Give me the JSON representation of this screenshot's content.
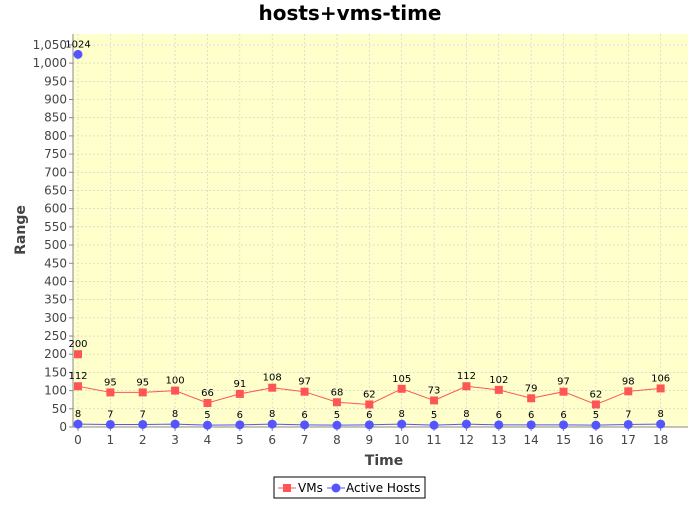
{
  "chart_data": {
    "type": "line",
    "title": "hosts+vms-time",
    "xlabel": "Time",
    "ylabel": "Range",
    "xlim": [
      0,
      19
    ],
    "ylim": [
      0,
      1080
    ],
    "x_ticks": [
      0,
      1,
      2,
      3,
      4,
      5,
      6,
      7,
      8,
      9,
      10,
      11,
      12,
      13,
      14,
      15,
      16,
      17,
      18
    ],
    "y_ticks": [
      0,
      50,
      100,
      150,
      200,
      250,
      300,
      350,
      400,
      450,
      500,
      550,
      600,
      650,
      700,
      750,
      800,
      850,
      900,
      950,
      1000,
      1050
    ],
    "y_tick_labels": [
      "0",
      "50",
      "100",
      "150",
      "200",
      "250",
      "300",
      "350",
      "400",
      "450",
      "500",
      "550",
      "600",
      "650",
      "700",
      "750",
      "800",
      "850",
      "900",
      "950",
      "1,000",
      "1,050"
    ],
    "grid": true,
    "legend_position": "bottom",
    "series": [
      {
        "name": "VMs",
        "color": "#ff5555",
        "marker": "square",
        "x": [
          0,
          1,
          2,
          3,
          4,
          5,
          6,
          7,
          8,
          9,
          10,
          11,
          12,
          13,
          14,
          15,
          16,
          17,
          18
        ],
        "values": [
          112,
          95,
          95,
          100,
          66,
          91,
          108,
          97,
          68,
          62,
          105,
          73,
          112,
          102,
          79,
          97,
          62,
          98,
          106
        ],
        "labels": [
          "112",
          "95",
          "95",
          "100",
          "66",
          "91",
          "108",
          "97",
          "68",
          "62",
          "105",
          "73",
          "112",
          "102",
          "79",
          "97",
          "62",
          "98",
          "106"
        ],
        "extra_points": [
          {
            "x": 0,
            "y": 200,
            "label": "200"
          }
        ]
      },
      {
        "name": "Active Hosts",
        "color": "#5555ff",
        "marker": "circle",
        "x": [
          0,
          1,
          2,
          3,
          4,
          5,
          6,
          7,
          8,
          9,
          10,
          11,
          12,
          13,
          14,
          15,
          16,
          17,
          18
        ],
        "values": [
          8,
          7,
          7,
          8,
          5,
          6,
          8,
          6,
          5,
          6,
          8,
          5,
          8,
          6,
          6,
          6,
          5,
          7,
          8
        ],
        "labels": [
          "8",
          "7",
          "7",
          "8",
          "5",
          "6",
          "8",
          "6",
          "5",
          "6",
          "8",
          "5",
          "8",
          "6",
          "6",
          "6",
          "5",
          "7",
          "8"
        ],
        "extra_points": [
          {
            "x": 0,
            "y": 1024,
            "label": "1024"
          }
        ]
      }
    ]
  }
}
